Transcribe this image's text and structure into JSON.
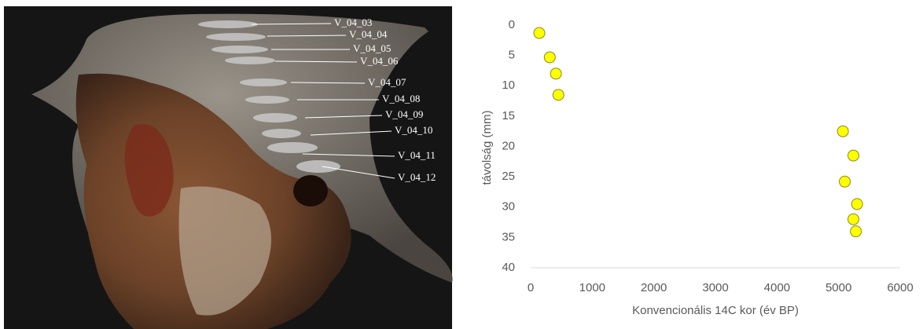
{
  "photo_labels": [
    "V_04_03",
    "V_04_04",
    "V_04_05",
    "V_04_06",
    "V_04_07",
    "V_04_08",
    "V_04_09",
    "V_04_10",
    "V_04_11",
    "V_04_12"
  ],
  "chart_data": {
    "type": "scatter",
    "x_label": "Konvencionális 14C kor (év BP)",
    "y_label": "távolság (mm)",
    "x": [
      140,
      310,
      410,
      450,
      5070,
      5240,
      5100,
      5300,
      5240,
      5280
    ],
    "values": [
      1.3,
      5.3,
      8.0,
      11.5,
      17.5,
      21.5,
      25.8,
      29.5,
      32.0,
      34.0
    ],
    "color": "#ffff00",
    "xlim": [
      0,
      6000
    ],
    "xticks": [
      0,
      1000,
      2000,
      3000,
      4000,
      5000,
      6000
    ],
    "ylim": [
      0,
      40
    ],
    "yticks": [
      0,
      5,
      10,
      15,
      20,
      25,
      30,
      35,
      40
    ],
    "invert_y": true,
    "grid": false
  }
}
